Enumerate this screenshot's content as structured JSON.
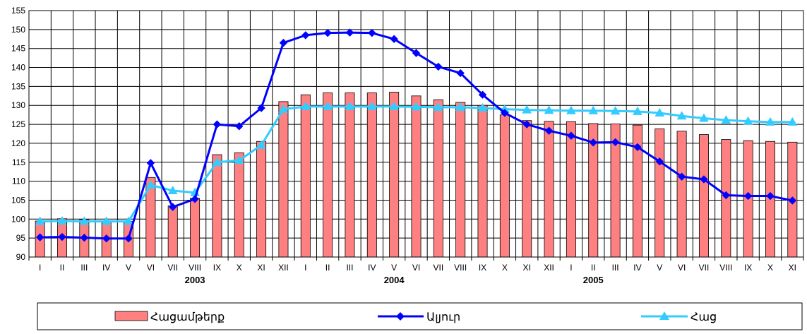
{
  "chart_data": {
    "type": "bar",
    "ylim": [
      90,
      155
    ],
    "yticks": [
      90,
      95,
      100,
      105,
      110,
      115,
      120,
      125,
      130,
      135,
      140,
      145,
      150,
      155
    ],
    "grid": true,
    "legend_position": "bottom",
    "categories": [
      "I",
      "II",
      "III",
      "IV",
      "V",
      "VI",
      "VII",
      "VIII",
      "IX",
      "X",
      "XI",
      "XII",
      "I",
      "II",
      "III",
      "IV",
      "V",
      "VI",
      "VII",
      "VIII",
      "IX",
      "X",
      "XI",
      "XII",
      "I",
      "II",
      "III",
      "IV",
      "V",
      "VI",
      "VII",
      "VIII",
      "IX",
      "X",
      "XI"
    ],
    "year_labels": [
      {
        "label": "2003",
        "center_index": 7
      },
      {
        "label": "2004",
        "center_index": 16
      },
      {
        "label": "2005",
        "center_index": 25
      }
    ],
    "series": [
      {
        "name": "Հացամթերք",
        "type": "bar",
        "color": "#FF8080",
        "values": [
          99.5,
          100.1,
          99.9,
          99.6,
          99.4,
          111.0,
          103.5,
          105.5,
          117.0,
          117.5,
          120.5,
          131.0,
          132.8,
          133.3,
          133.3,
          133.3,
          133.5,
          132.5,
          131.5,
          130.8,
          130.0,
          127.5,
          126.0,
          125.8,
          125.7,
          125.2,
          125.1,
          124.8,
          123.8,
          123.2,
          122.3,
          121.0,
          120.7,
          120.5,
          120.3
        ]
      },
      {
        "name": "Ալյուր",
        "type": "line",
        "marker": "diamond",
        "color": "#0000FF",
        "values": [
          95.2,
          95.3,
          95.1,
          94.9,
          94.9,
          114.8,
          103.2,
          105.3,
          125.0,
          124.5,
          129.3,
          146.5,
          148.5,
          149.1,
          149.2,
          149.1,
          147.5,
          143.8,
          140.2,
          138.5,
          132.8,
          128.0,
          125.0,
          123.3,
          122.0,
          120.2,
          120.3,
          119.0,
          115.2,
          111.2,
          110.5,
          106.3,
          106.1,
          106.1,
          104.9
        ]
      },
      {
        "name": "Հաց",
        "type": "line",
        "marker": "triangle",
        "color": "#33CCFF",
        "values": [
          99.4,
          99.5,
          99.4,
          99.4,
          99.4,
          109.0,
          107.5,
          107.0,
          115.0,
          115.5,
          119.5,
          129.0,
          129.7,
          129.7,
          129.7,
          129.7,
          129.7,
          129.6,
          129.5,
          129.5,
          129.3,
          129.0,
          128.8,
          128.7,
          128.6,
          128.6,
          128.5,
          128.4,
          128.0,
          127.2,
          126.6,
          126.1,
          125.8,
          125.6,
          125.6
        ]
      }
    ]
  }
}
